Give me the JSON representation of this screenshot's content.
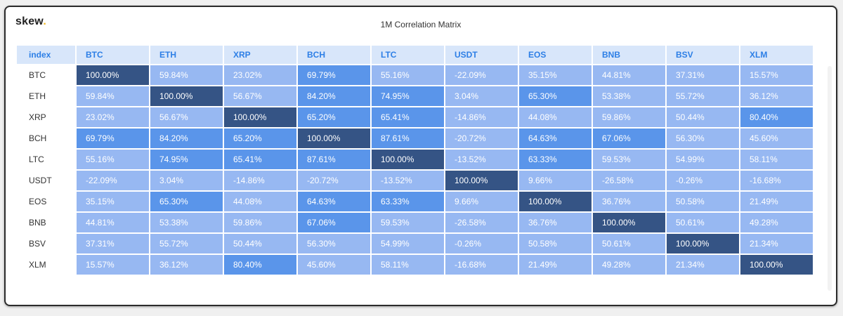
{
  "header": {
    "logo_text": "skew",
    "logo_dot": ".",
    "title": "1M Correlation Matrix"
  },
  "chart_data": {
    "type": "heatmap",
    "title": "1M Correlation Matrix",
    "corner_label": "index",
    "columns": [
      "BTC",
      "ETH",
      "XRP",
      "BCH",
      "LTC",
      "USDT",
      "EOS",
      "BNB",
      "BSV",
      "XLM"
    ],
    "rows": [
      "BTC",
      "ETH",
      "XRP",
      "BCH",
      "LTC",
      "USDT",
      "EOS",
      "BNB",
      "BSV",
      "XLM"
    ],
    "values": [
      [
        "100.00%",
        "59.84%",
        "23.02%",
        "69.79%",
        "55.16%",
        "-22.09%",
        "35.15%",
        "44.81%",
        "37.31%",
        "15.57%"
      ],
      [
        "59.84%",
        "100.00%",
        "56.67%",
        "84.20%",
        "74.95%",
        "3.04%",
        "65.30%",
        "53.38%",
        "55.72%",
        "36.12%"
      ],
      [
        "23.02%",
        "56.67%",
        "100.00%",
        "65.20%",
        "65.41%",
        "-14.86%",
        "44.08%",
        "59.86%",
        "50.44%",
        "80.40%"
      ],
      [
        "69.79%",
        "84.20%",
        "65.20%",
        "100.00%",
        "87.61%",
        "-20.72%",
        "64.63%",
        "67.06%",
        "56.30%",
        "45.60%"
      ],
      [
        "55.16%",
        "74.95%",
        "65.41%",
        "87.61%",
        "100.00%",
        "-13.52%",
        "63.33%",
        "59.53%",
        "54.99%",
        "58.11%"
      ],
      [
        "-22.09%",
        "3.04%",
        "-14.86%",
        "-20.72%",
        "-13.52%",
        "100.00%",
        "9.66%",
        "-26.58%",
        "-0.26%",
        "-16.68%"
      ],
      [
        "35.15%",
        "65.30%",
        "44.08%",
        "64.63%",
        "63.33%",
        "9.66%",
        "100.00%",
        "36.76%",
        "50.58%",
        "21.49%"
      ],
      [
        "44.81%",
        "53.38%",
        "59.86%",
        "67.06%",
        "59.53%",
        "-26.58%",
        "36.76%",
        "100.00%",
        "50.61%",
        "49.28%"
      ],
      [
        "37.31%",
        "55.72%",
        "50.44%",
        "56.30%",
        "54.99%",
        "-0.26%",
        "50.58%",
        "50.61%",
        "100.00%",
        "21.34%"
      ],
      [
        "15.57%",
        "36.12%",
        "80.40%",
        "45.60%",
        "58.11%",
        "-16.68%",
        "21.49%",
        "49.28%",
        "21.34%",
        "100.00%"
      ]
    ],
    "color_scale": {
      "dark": "#355485",
      "mid": "#5a95ea",
      "light": "#97b8f2"
    }
  }
}
